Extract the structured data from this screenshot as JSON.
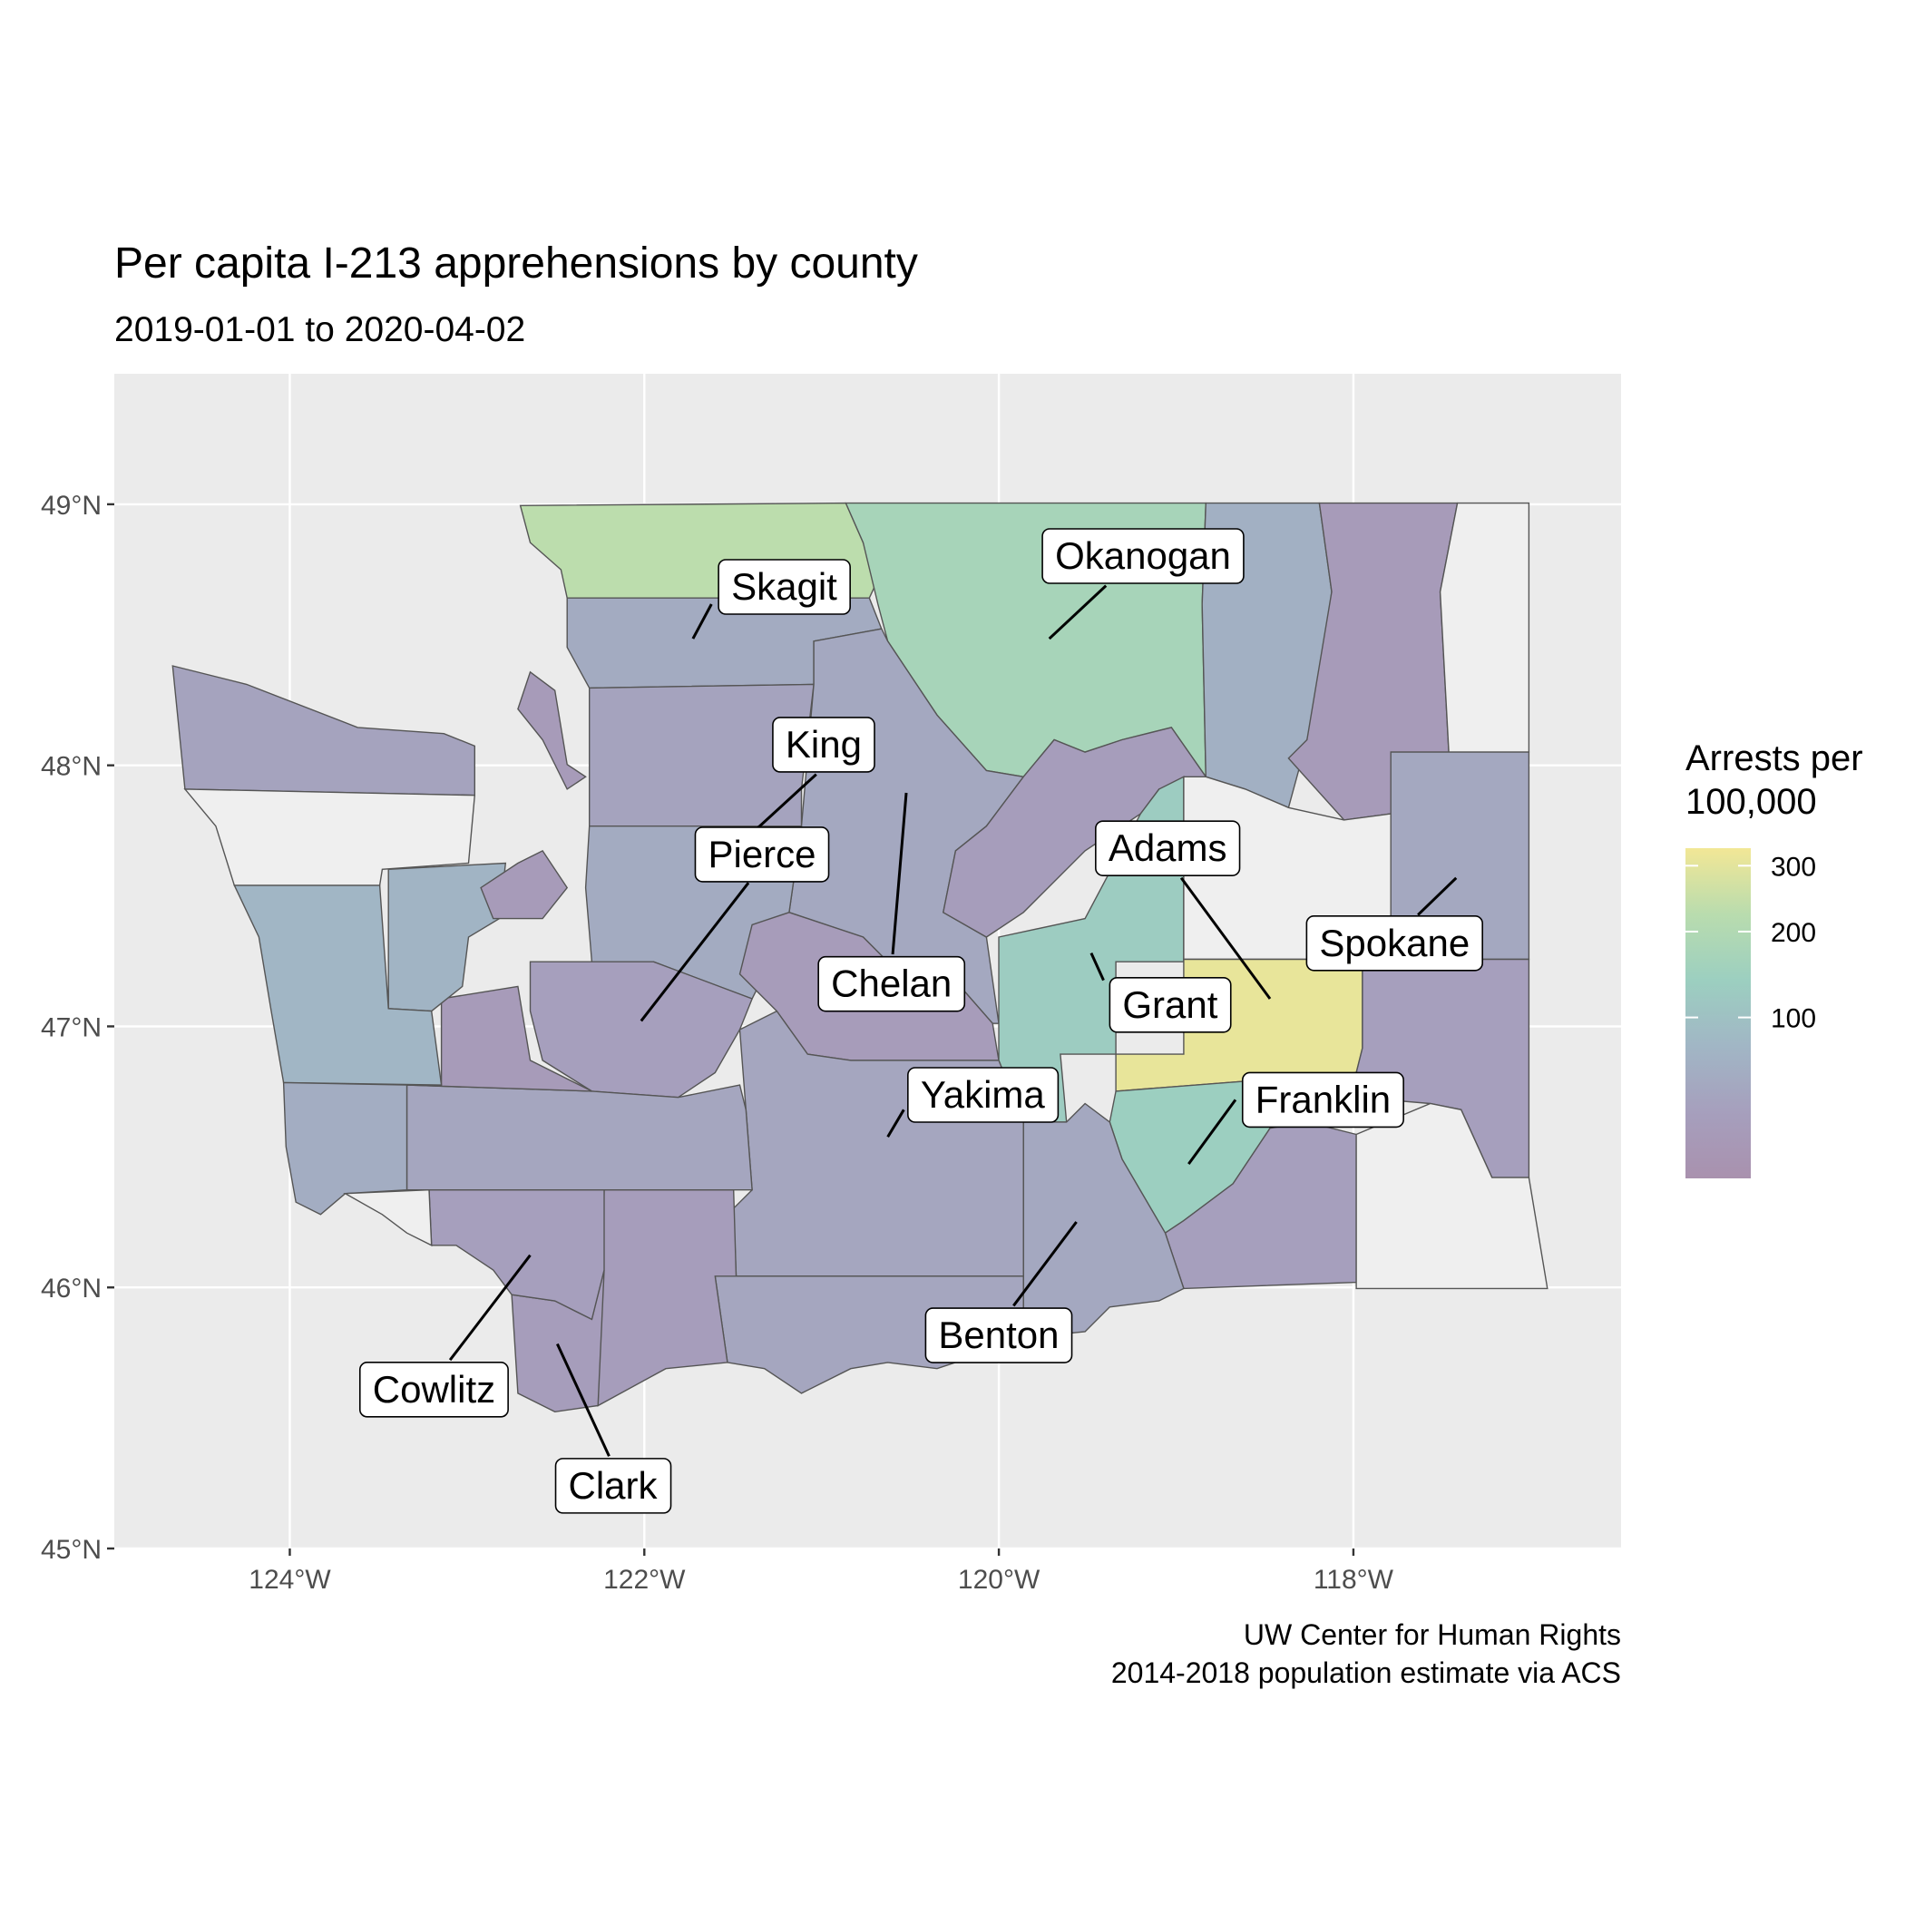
{
  "chart_data": {
    "type": "choropleth",
    "title": "Per capita I-213 apprehensions by county",
    "subtitle": "2019-01-01 to 2020-04-02",
    "caption": [
      "UW Center for Human Rights",
      "2014-2018 population estimate via ACS"
    ],
    "xlim": [
      -124.99,
      -116.49
    ],
    "ylim": [
      45,
      49.5
    ],
    "xticks": [
      {
        "value": -124,
        "label": "124°W"
      },
      {
        "value": -122,
        "label": "122°W"
      },
      {
        "value": -120,
        "label": "120°W"
      },
      {
        "value": -118,
        "label": "118°W"
      }
    ],
    "yticks": [
      {
        "value": 45,
        "label": "45°N"
      },
      {
        "value": 46,
        "label": "46°N"
      },
      {
        "value": 47,
        "label": "47°N"
      },
      {
        "value": 48,
        "label": "48°N"
      },
      {
        "value": 49,
        "label": "49°N"
      }
    ],
    "grid": true,
    "background": "#ebebeb",
    "na_color": "#efefef",
    "legend": {
      "title": "Arrests per 100,000",
      "scale": "sqrt",
      "lim": [
        5,
        330
      ],
      "ticks": [
        100,
        200,
        300
      ],
      "colors": [
        "#a991ae",
        "#a69fbd",
        "#a1b6c5",
        "#9ccfc0",
        "#b9dcae",
        "#f2e796"
      ]
    },
    "counties": [
      {
        "value": 230
      },
      {
        "label": "Okanogan",
        "value": 170
      },
      {
        "value": 60
      },
      {
        "value": 20
      },
      {
        "value": null
      },
      {
        "label": "Skagit",
        "value": 50
      },
      {
        "value": 35
      },
      {
        "label": "Chelan",
        "value": 45
      },
      {
        "value": 25
      },
      {
        "label": "King",
        "value": 50
      },
      {
        "label": "Pierce",
        "value": 30
      },
      {
        "value": 22
      },
      {
        "label": "Grant",
        "value": 130
      },
      {
        "value": null
      },
      {
        "label": "Spokane",
        "value": 45
      },
      {
        "label": "Adams",
        "value": 310
      },
      {
        "value": 30
      },
      {
        "label": "Franklin",
        "value": 140
      },
      {
        "value": 30
      },
      {
        "value": null
      },
      {
        "label": "Benton",
        "value": 45
      },
      {
        "label": "Yakima",
        "value": 40
      },
      {
        "value": 40
      },
      {
        "value": 25
      },
      {
        "label": "Clark",
        "value": 25
      },
      {
        "label": "Cowlitz",
        "value": 30
      },
      {
        "value": 40
      },
      {
        "value": 20
      },
      {
        "value": 70
      },
      {
        "value": 75
      },
      {
        "value": 55
      },
      {
        "value": null
      },
      {
        "value": 35
      },
      {
        "value": null
      },
      {
        "value": 20
      },
      {
        "value": 20
      }
    ]
  }
}
